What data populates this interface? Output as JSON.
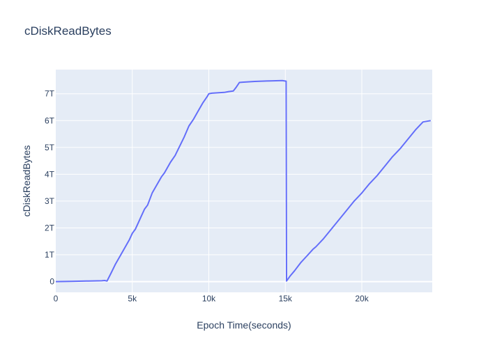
{
  "chart_data": {
    "type": "line",
    "title": "cDiskReadBytes",
    "xlabel": "Epoch Time(seconds)",
    "ylabel": "cDiskReadBytes",
    "xlim": [
      0,
      24600
    ],
    "ylim": [
      -0.4,
      7.9
    ],
    "y_unit": "T",
    "grid": true,
    "x_ticks": [
      {
        "value": 0,
        "label": "0"
      },
      {
        "value": 5000,
        "label": "5k"
      },
      {
        "value": 10000,
        "label": "10k"
      },
      {
        "value": 15000,
        "label": "15k"
      },
      {
        "value": 20000,
        "label": "20k"
      }
    ],
    "y_ticks": [
      {
        "value": 0,
        "label": "0"
      },
      {
        "value": 1,
        "label": "1T"
      },
      {
        "value": 2,
        "label": "2T"
      },
      {
        "value": 3,
        "label": "3T"
      },
      {
        "value": 4,
        "label": "4T"
      },
      {
        "value": 5,
        "label": "5T"
      },
      {
        "value": 6,
        "label": "6T"
      },
      {
        "value": 7,
        "label": "7T"
      }
    ],
    "series": [
      {
        "color": "#636efa",
        "x": [
          0,
          1000,
          2000,
          3000,
          3200,
          3350,
          3600,
          3900,
          4200,
          4500,
          4800,
          5000,
          5200,
          5400,
          5600,
          5800,
          6000,
          6300,
          6600,
          6900,
          7100,
          7300,
          7500,
          7800,
          8100,
          8400,
          8700,
          9000,
          9300,
          9600,
          9900,
          10000,
          10200,
          11000,
          11300,
          11600,
          11800,
          12000,
          12200,
          13000,
          14000,
          14800,
          15050,
          15080,
          15300,
          15600,
          16000,
          16400,
          16800,
          17000,
          17500,
          18000,
          18500,
          19000,
          19500,
          20000,
          20500,
          21000,
          21500,
          22000,
          22500,
          23000,
          23500,
          24000,
          24500
        ],
        "y": [
          0.0,
          0.01,
          0.02,
          0.03,
          0.04,
          0.02,
          0.3,
          0.65,
          0.95,
          1.25,
          1.55,
          1.8,
          1.95,
          2.2,
          2.45,
          2.7,
          2.85,
          3.3,
          3.6,
          3.9,
          4.05,
          4.25,
          4.45,
          4.7,
          5.05,
          5.4,
          5.8,
          6.05,
          6.35,
          6.65,
          6.9,
          7.0,
          7.02,
          7.05,
          7.08,
          7.1,
          7.25,
          7.42,
          7.43,
          7.46,
          7.48,
          7.49,
          7.47,
          0.02,
          0.2,
          0.4,
          0.7,
          0.95,
          1.2,
          1.3,
          1.6,
          1.95,
          2.3,
          2.65,
          3.0,
          3.3,
          3.65,
          3.95,
          4.3,
          4.65,
          4.95,
          5.3,
          5.65,
          5.95,
          6.0
        ]
      }
    ]
  }
}
